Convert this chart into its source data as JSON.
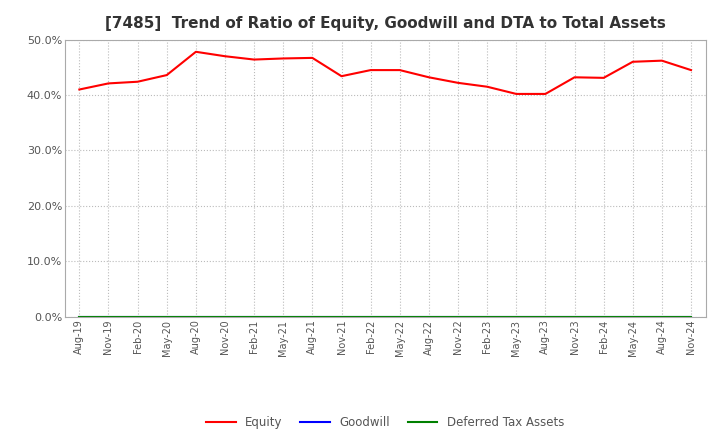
{
  "title": "[7485]  Trend of Ratio of Equity, Goodwill and DTA to Total Assets",
  "x_labels": [
    "Aug-19",
    "Nov-19",
    "Feb-20",
    "May-20",
    "Aug-20",
    "Nov-20",
    "Feb-21",
    "May-21",
    "Aug-21",
    "Nov-21",
    "Feb-22",
    "May-22",
    "Aug-22",
    "Nov-22",
    "Feb-23",
    "May-23",
    "Aug-23",
    "Nov-23",
    "Feb-24",
    "May-24",
    "Aug-24",
    "Nov-24"
  ],
  "equity": [
    0.41,
    0.421,
    0.424,
    0.436,
    0.478,
    0.47,
    0.464,
    0.466,
    0.467,
    0.434,
    0.445,
    0.445,
    0.432,
    0.422,
    0.415,
    0.402,
    0.402,
    0.432,
    0.431,
    0.46,
    0.462,
    0.445
  ],
  "goodwill": [
    0.0,
    0.0,
    0.0,
    0.0,
    0.0,
    0.0,
    0.0,
    0.0,
    0.0,
    0.0,
    0.0,
    0.0,
    0.0,
    0.0,
    0.0,
    0.0,
    0.0,
    0.0,
    0.0,
    0.0,
    0.0,
    0.0
  ],
  "dta": [
    0.0,
    0.0,
    0.0,
    0.0,
    0.0,
    0.0,
    0.0,
    0.0,
    0.0,
    0.0,
    0.0,
    0.0,
    0.0,
    0.0,
    0.0,
    0.0,
    0.0,
    0.0,
    0.0,
    0.0,
    0.0,
    0.0
  ],
  "equity_color": "#ff0000",
  "goodwill_color": "#0000ff",
  "dta_color": "#008000",
  "ylim": [
    0.0,
    0.5
  ],
  "yticks": [
    0.0,
    0.1,
    0.2,
    0.3,
    0.4,
    0.5
  ],
  "background_color": "#ffffff",
  "plot_bg_color": "#ffffff",
  "grid_color": "#bbbbbb",
  "title_fontsize": 11,
  "legend_labels": [
    "Equity",
    "Goodwill",
    "Deferred Tax Assets"
  ]
}
